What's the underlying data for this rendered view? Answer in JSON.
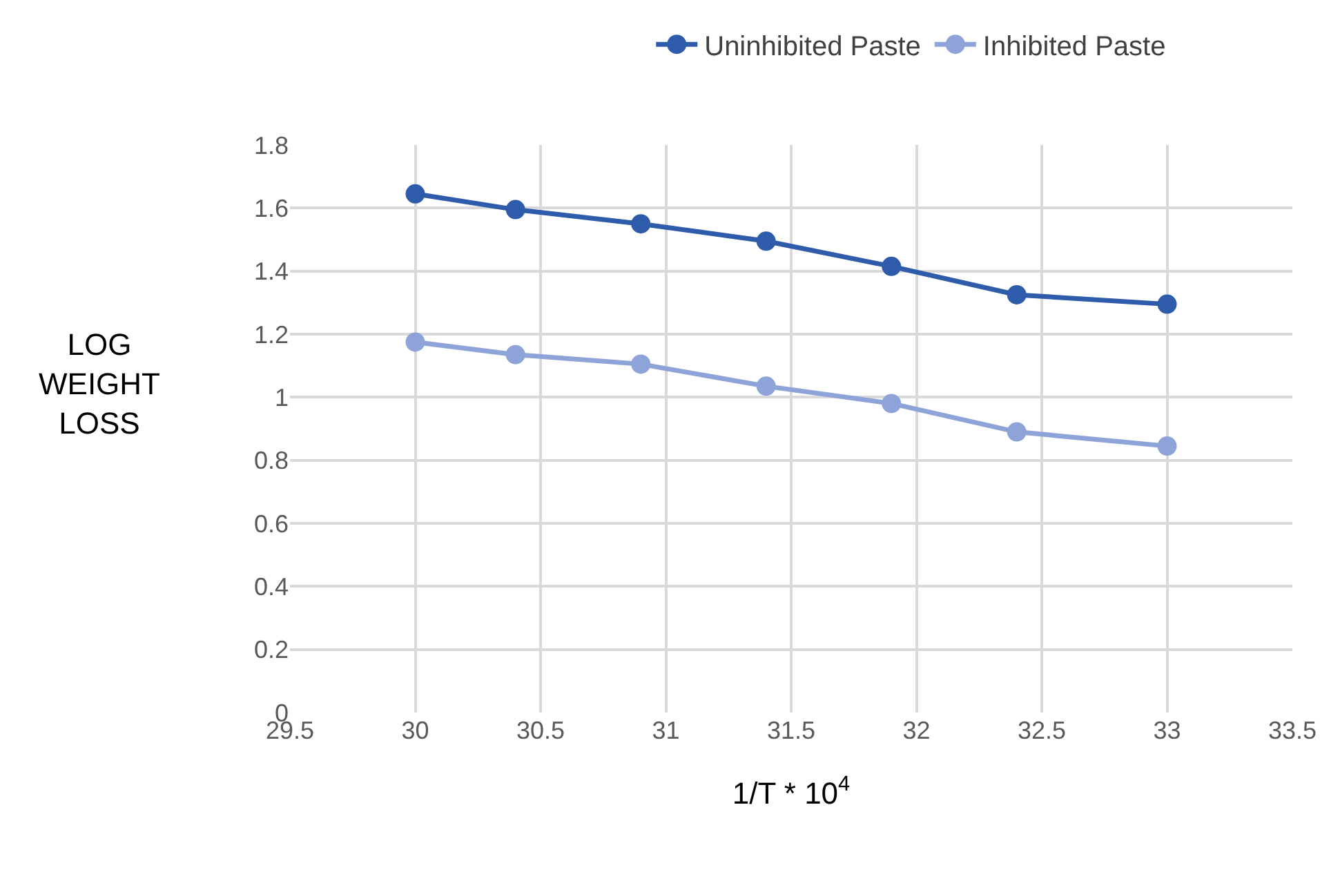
{
  "chart_data": {
    "type": "line",
    "xlabel": "1/T * 10$^{4}$",
    "ylabel": "LOG WEIGHT LOSS",
    "x": [
      30,
      30.4,
      30.9,
      31.4,
      31.9,
      32.4,
      33
    ],
    "series": [
      {
        "name": "Uninhibited Paste",
        "color": "#2f5caa",
        "values": [
          1.645,
          1.595,
          1.55,
          1.495,
          1.415,
          1.325,
          1.295
        ]
      },
      {
        "name": "Inhibited Paste",
        "color": "#8ea4d8",
        "values": [
          1.175,
          1.135,
          1.105,
          1.035,
          0.98,
          0.89,
          0.845
        ]
      }
    ],
    "xlim": [
      29.5,
      33.5
    ],
    "xticks": [
      29.5,
      30,
      30.5,
      31,
      31.5,
      32,
      32.5,
      33,
      33.5
    ],
    "ylim": [
      0,
      1.8
    ],
    "yticks": [
      0,
      0.2,
      0.4,
      0.6,
      0.8,
      1,
      1.2,
      1.4,
      1.6,
      1.8
    ],
    "grid": true,
    "legend": "top",
    "marker": "circle",
    "line_style": "solid"
  }
}
